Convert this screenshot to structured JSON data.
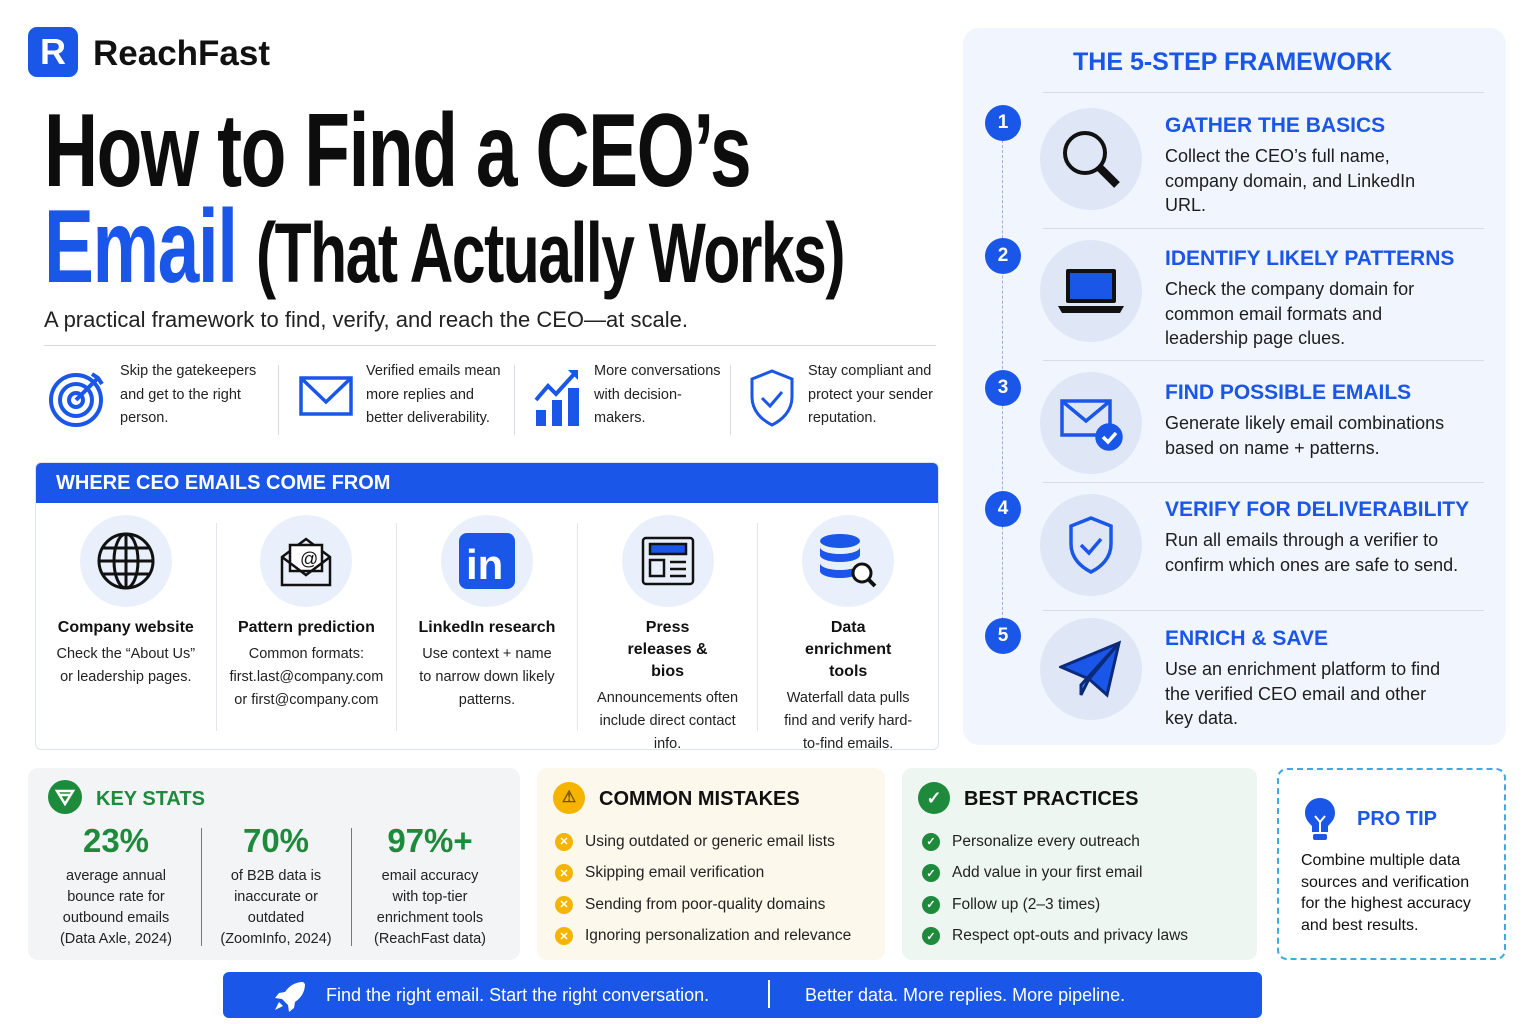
{
  "brand": {
    "name": "ReachFast",
    "logo_letter": "R"
  },
  "headline": {
    "line1": "How to Find a CEO’s",
    "highlight": "Email",
    "line2_rest": "(That Actually Works)"
  },
  "subtitle": "A practical framework to find, verify, and reach the CEO—at scale.",
  "benefits": [
    {
      "icon": "target-icon",
      "text": "Skip the gatekeepers and get to the right person."
    },
    {
      "icon": "envelope-icon",
      "text": "Verified emails mean more replies and better deliverability."
    },
    {
      "icon": "growth-chart-icon",
      "text": "More conversations with decision-makers."
    },
    {
      "icon": "shield-check-icon",
      "text": "Stay compliant and protect your sender reputation."
    }
  ],
  "sources": {
    "title": "WHERE CEO EMAILS COME FROM",
    "items": [
      {
        "icon": "globe-icon",
        "title": "Company website",
        "desc": "Check the “About Us” or leadership pages."
      },
      {
        "icon": "email-pattern-icon",
        "title": "Pattern prediction",
        "desc": "Common formats: first.last@company.com or first@company.com"
      },
      {
        "icon": "linkedin-icon",
        "title": "LinkedIn research",
        "desc": "Use context + name to narrow down likely patterns."
      },
      {
        "icon": "newspaper-icon",
        "title": "Press releases & bios",
        "desc": "Announcements often include direct contact info."
      },
      {
        "icon": "database-search-icon",
        "title": "Data enrichment tools",
        "desc": "Waterfall data pulls find and verify hard-to-find emails."
      }
    ]
  },
  "framework": {
    "title": "THE 5-STEP FRAMEWORK",
    "steps": [
      {
        "num": "1",
        "icon": "magnifier-icon",
        "title": "GATHER THE BASICS",
        "desc": "Collect the CEO’s full name, company domain, and LinkedIn URL."
      },
      {
        "num": "2",
        "icon": "laptop-icon",
        "title": "IDENTIFY LIKELY PATTERNS",
        "desc": "Check the company domain for common email formats and leadership page clues."
      },
      {
        "num": "3",
        "icon": "envelope-check-icon",
        "title": "FIND POSSIBLE EMAILS",
        "desc": "Generate likely email combinations based on name + patterns."
      },
      {
        "num": "4",
        "icon": "shield-check-icon",
        "title": "VERIFY FOR DELIVERABILITY",
        "desc": "Run all emails through a verifier to confirm which ones are safe to send."
      },
      {
        "num": "5",
        "icon": "paper-plane-icon",
        "title": "ENRICH & SAVE",
        "desc": "Use an enrichment platform to find the verified CEO email and other key data."
      }
    ]
  },
  "key_stats": {
    "title": "KEY STATS",
    "items": [
      {
        "value": "23%",
        "desc": "average annual bounce rate for outbound emails",
        "source": "(Data Axle, 2024)"
      },
      {
        "value": "70%",
        "desc": "of B2B data is inaccurate or outdated",
        "source": "(ZoomInfo, 2024)"
      },
      {
        "value": "97%+",
        "desc": "email accuracy with top-tier enrichment tools",
        "source": "(ReachFast data)"
      }
    ]
  },
  "mistakes": {
    "title": "COMMON MISTAKES",
    "items": [
      "Using outdated or generic email lists",
      "Skipping email verification",
      "Sending from poor-quality domains",
      "Ignoring personalization and relevance"
    ]
  },
  "best_practices": {
    "title": "BEST PRACTICES",
    "items": [
      "Personalize every outreach",
      "Add value in your first email",
      "Follow up (2–3 times)",
      "Respect opt-outs and privacy laws"
    ]
  },
  "pro_tip": {
    "title": "PRO TIP",
    "text": "Combine multiple data sources and verification for the highest accuracy and best results."
  },
  "footer": {
    "left": "Find the right email. Start the right conversation.",
    "right": "Better data. More replies. More pipeline."
  },
  "colors": {
    "primary": "#1a56e8",
    "green": "#1e8a3c",
    "amber": "#f5b400",
    "panel": "#f1f5fd"
  }
}
